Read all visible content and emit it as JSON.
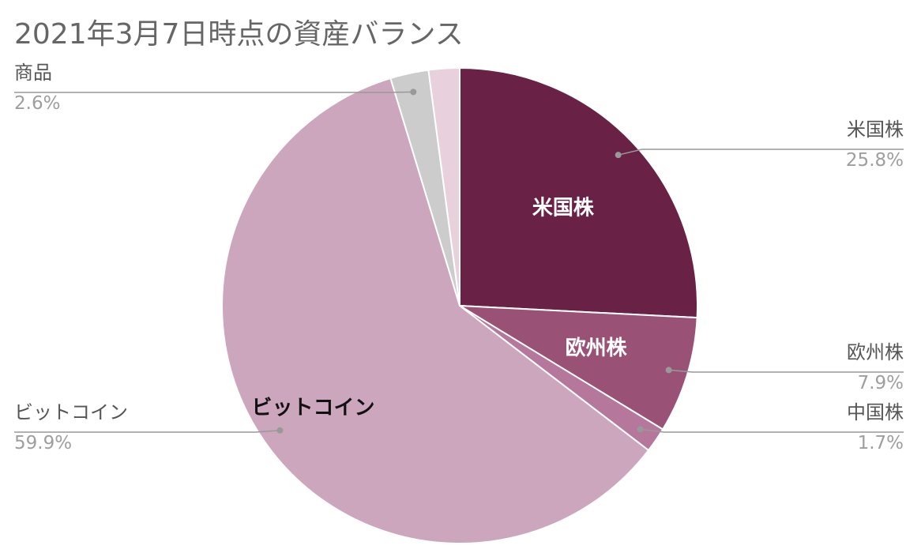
{
  "chart_data": {
    "type": "pie",
    "title": "2021年3月7日時点の資産バランス",
    "start_angle_deg": 0,
    "direction": "clockwise",
    "slices": [
      {
        "label": "米国株",
        "value": 25.8,
        "percent_label": "25.8%",
        "color": "#6a2146",
        "inside_label": "米国株",
        "inside_color": "#ffffff"
      },
      {
        "label": "欧州株",
        "value": 7.9,
        "percent_label": "7.9%",
        "color": "#9a5176",
        "inside_label": "欧州株",
        "inside_color": "#ffffff"
      },
      {
        "label": "中国株",
        "value": 1.7,
        "percent_label": "1.7%",
        "color": "#b5779b",
        "inside_label": "",
        "inside_color": "#ffffff"
      },
      {
        "label": "ビットコイン",
        "value": 59.9,
        "percent_label": "59.9%",
        "color": "#cca6bc",
        "inside_label": "ビットコイン",
        "inside_color": "#111111"
      },
      {
        "label": "商品",
        "value": 2.6,
        "percent_label": "2.6%",
        "color": "#cccccc",
        "inside_label": "",
        "inside_color": "#333333"
      },
      {
        "label": "",
        "value": 2.1,
        "percent_label": "",
        "color": "#e8d0dc",
        "inside_label": "",
        "inside_color": "#333333"
      }
    ],
    "legend": "none",
    "leader_color": "#999999"
  }
}
